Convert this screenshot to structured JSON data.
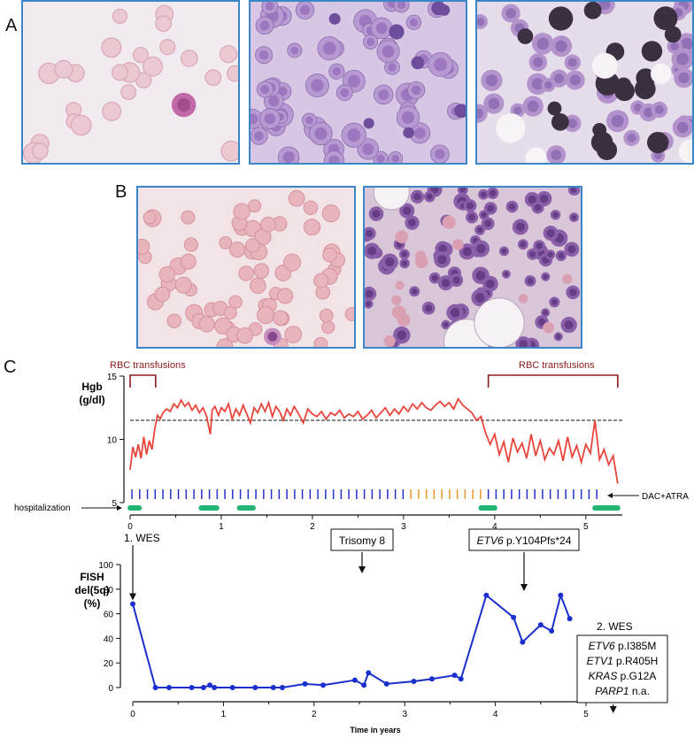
{
  "panels": {
    "a": "A",
    "b": "B",
    "c": "C"
  },
  "micrographs": {
    "a1": "blood smear with single blast",
    "a2": "bone marrow blasts",
    "a3": "bone marrow with iron staining",
    "b1": "blood smear with neutrophil",
    "b2": "bone marrow with fat vacuoles"
  },
  "hgb_chart": {
    "ylabel": "Hgb\n(g/dl)",
    "yticks": [
      5,
      10,
      15
    ],
    "ylim": [
      5,
      15
    ],
    "xlim": [
      0,
      5.4
    ],
    "threshold": 11.5,
    "transfusion_label_1": "RBC transfusions",
    "transfusion_label_2": "RBC transfusions",
    "transfusion_1": [
      0,
      0.28
    ],
    "transfusion_2": [
      3.93,
      5.35
    ],
    "hospitalization_label": "hospitalization",
    "dac_label": "DAC+ATRA",
    "hospitalizations": [
      [
        0,
        0.1
      ],
      [
        0.78,
        0.95
      ],
      [
        1.2,
        1.35
      ],
      [
        3.85,
        4.0
      ],
      [
        5.1,
        5.35
      ]
    ],
    "color_line": "#e8453c",
    "color_blue_ticks": "#2233cc",
    "color_orange_ticks": "#e8962a",
    "color_hosp": "#22b573",
    "color_transfusion": "#8b1a1a"
  },
  "fish_chart": {
    "ylabel": "FISH\ndel(5q)\n(%)",
    "xlabel": "Time in years",
    "yticks": [
      0,
      20,
      40,
      60,
      80,
      100
    ],
    "xticks": [
      0,
      1,
      2,
      3,
      4,
      5
    ],
    "xlim": [
      0,
      5.4
    ],
    "ylim": [
      0,
      100
    ],
    "color": "#1a2fcc",
    "annotation_wes1": "1. WES",
    "annotation_trisomy": "Trisomy 8",
    "annotation_etv6_gene": "ETV6",
    "annotation_etv6_variant": " p.Y104Pfs*24",
    "annotation_wes2": "2. WES",
    "wes2_box": [
      {
        "gene": "ETV6",
        "variant": " p.I385M"
      },
      {
        "gene": "ETV1",
        "variant": " p.R405H"
      },
      {
        "gene": "KRAS",
        "variant": " p.G12A"
      },
      {
        "gene": "PARP1",
        "variant": " n.a."
      }
    ]
  },
  "chart_data": [
    {
      "type": "line",
      "title": "",
      "ylabel": "Hgb (g/dl)",
      "xlabel": "",
      "xlim": [
        0,
        5.4
      ],
      "ylim": [
        5,
        15
      ],
      "series": [
        {
          "x": [
            0,
            0.03,
            0.06,
            0.09,
            0.12,
            0.15,
            0.18,
            0.21,
            0.24,
            0.27,
            0.3,
            0.33,
            0.36,
            0.4,
            0.44,
            0.48,
            0.52,
            0.56,
            0.6,
            0.64,
            0.68,
            0.72,
            0.76,
            0.8,
            0.84,
            0.88,
            0.9,
            0.93,
            0.97,
            1.0,
            1.04,
            1.08,
            1.12,
            1.16,
            1.2,
            1.24,
            1.28,
            1.32,
            1.36,
            1.4,
            1.44,
            1.48,
            1.52,
            1.56,
            1.6,
            1.64,
            1.68,
            1.72,
            1.76,
            1.8,
            1.85,
            1.9,
            1.95,
            2.0,
            2.05,
            2.1,
            2.15,
            2.2,
            2.25,
            2.3,
            2.35,
            2.4,
            2.45,
            2.5,
            2.55,
            2.6,
            2.65,
            2.7,
            2.75,
            2.8,
            2.85,
            2.9,
            2.95,
            3.0,
            3.05,
            3.1,
            3.15,
            3.2,
            3.25,
            3.3,
            3.35,
            3.4,
            3.45,
            3.5,
            3.55,
            3.6,
            3.65,
            3.7,
            3.75,
            3.8,
            3.85,
            3.9,
            3.95,
            4.0,
            4.05,
            4.1,
            4.15,
            4.2,
            4.25,
            4.3,
            4.35,
            4.4,
            4.45,
            4.5,
            4.55,
            4.6,
            4.65,
            4.7,
            4.75,
            4.8,
            4.85,
            4.9,
            4.95,
            5.0,
            5.05,
            5.1,
            5.15,
            5.2,
            5.25,
            5.3,
            5.35
          ],
          "y": [
            7.6,
            9.4,
            8.6,
            9.6,
            8.5,
            10.2,
            8.8,
            9.9,
            9.2,
            10.8,
            11.9,
            11.6,
            12.1,
            12.4,
            12.2,
            12.8,
            12.5,
            13.1,
            12.6,
            12.9,
            12.3,
            12.7,
            12.1,
            12.5,
            11.8,
            10.4,
            12.3,
            12.6,
            11.9,
            12.5,
            12.2,
            12.8,
            11.6,
            12.4,
            11.9,
            12.7,
            12.0,
            11.3,
            12.5,
            12.1,
            12.8,
            12.2,
            12.9,
            11.8,
            12.6,
            12.2,
            11.5,
            12.4,
            11.9,
            12.6,
            12.0,
            11.3,
            12.4,
            12.0,
            11.8,
            12.2,
            11.6,
            12.1,
            11.9,
            12.3,
            11.7,
            12.0,
            11.8,
            12.2,
            11.6,
            11.9,
            12.3,
            11.7,
            12.1,
            12.5,
            11.9,
            12.4,
            12.0,
            12.6,
            12.2,
            12.8,
            12.4,
            12.9,
            12.5,
            12.3,
            12.7,
            13.0,
            12.6,
            12.9,
            12.4,
            13.2,
            12.7,
            12.4,
            12.1,
            11.5,
            11.8,
            10.5,
            9.6,
            10.4,
            8.8,
            9.8,
            8.2,
            10.1,
            9.0,
            9.7,
            8.5,
            10.4,
            8.7,
            9.9,
            8.4,
            9.3,
            8.8,
            9.9,
            8.3,
            10.2,
            8.6,
            9.5,
            8.2,
            9.6,
            8.9,
            11.5,
            8.4,
            9.2,
            8.0,
            8.7,
            6.5
          ]
        }
      ]
    },
    {
      "type": "line",
      "title": "",
      "ylabel": "FISH del(5q) (%)",
      "xlabel": "Time in years",
      "xlim": [
        0,
        5.4
      ],
      "ylim": [
        0,
        100
      ],
      "series": [
        {
          "x": [
            0,
            0.25,
            0.4,
            0.65,
            0.78,
            0.85,
            0.9,
            1.1,
            1.35,
            1.55,
            1.65,
            1.9,
            2.1,
            2.45,
            2.55,
            2.6,
            2.8,
            3.1,
            3.3,
            3.55,
            3.62,
            3.9,
            4.2,
            4.3,
            4.5,
            4.62,
            4.72,
            4.82
          ],
          "y": [
            68,
            0,
            0,
            0,
            0,
            2,
            0,
            0,
            0,
            0,
            0,
            3,
            2,
            6,
            2,
            12,
            3,
            5,
            7,
            10,
            7,
            75,
            57,
            37,
            51,
            46,
            75,
            56
          ]
        }
      ]
    }
  ]
}
